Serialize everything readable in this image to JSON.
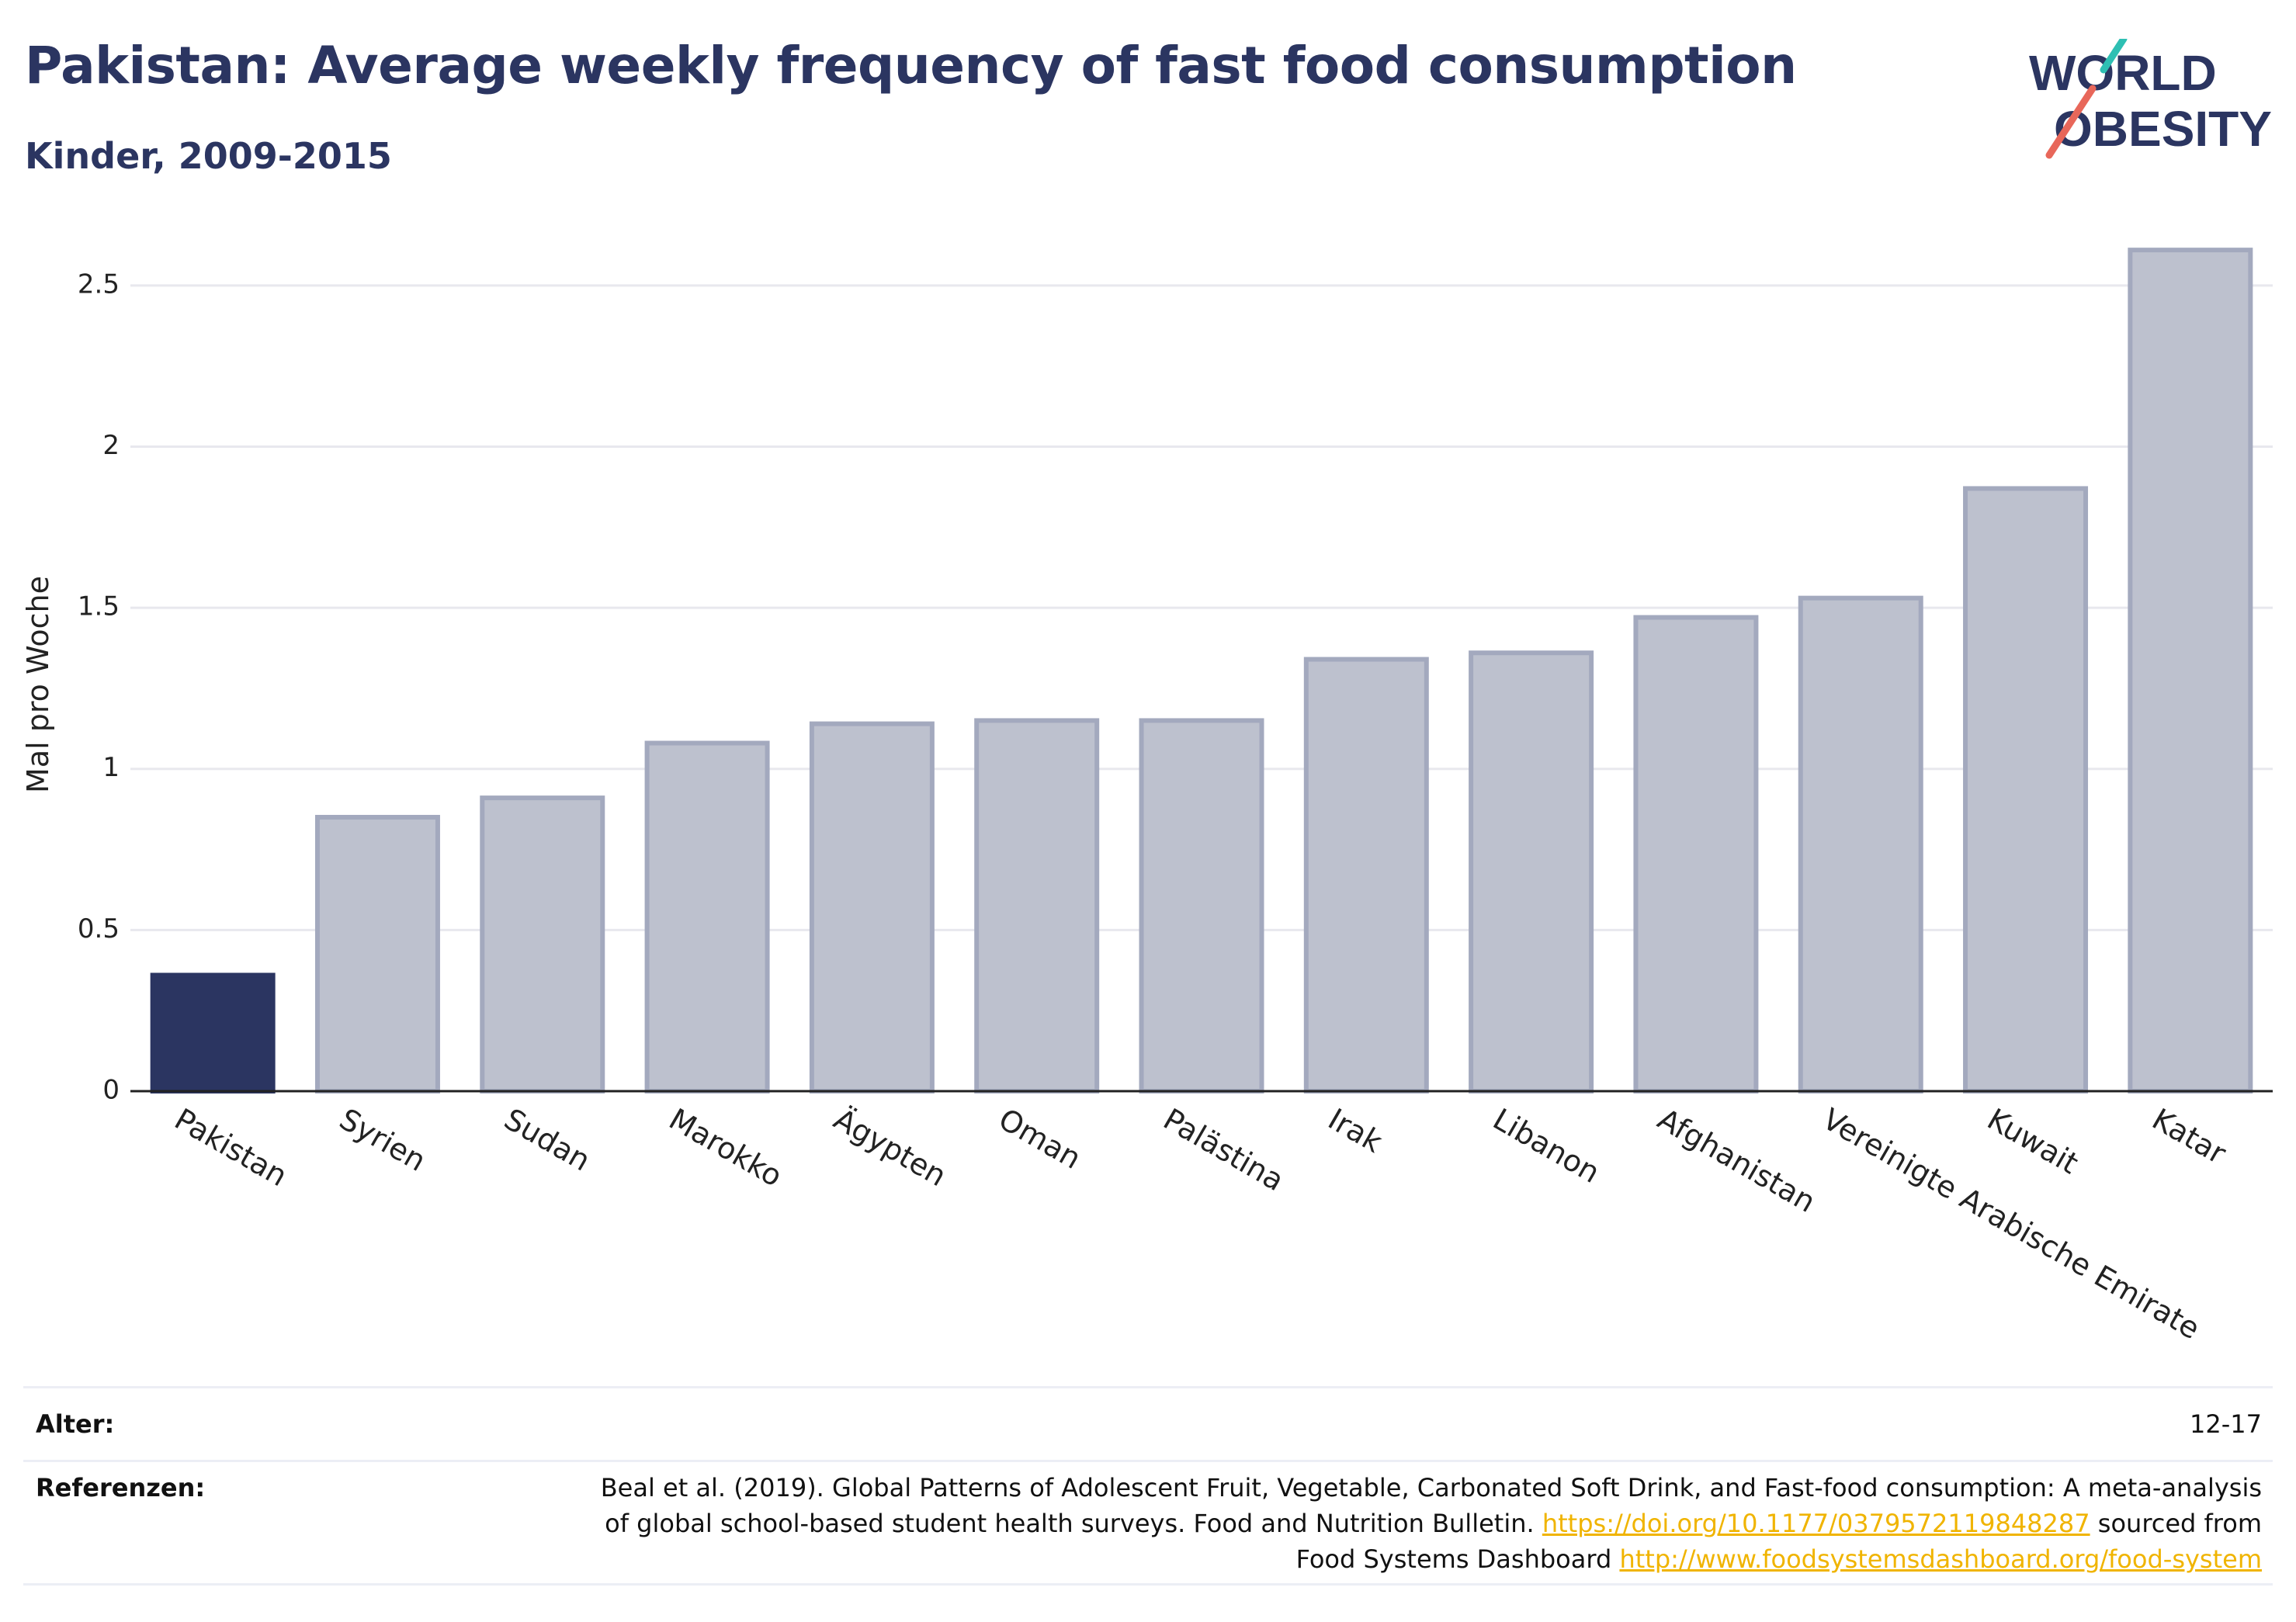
{
  "header": {
    "title": "Pakistan: Average weekly frequency of fast food consumption",
    "subtitle": "Kinder, 2009-2015",
    "logo_line1": "WORLD",
    "logo_line2": "OBESITY"
  },
  "chart_data": {
    "type": "bar",
    "title": "Pakistan: Average weekly frequency of fast food consumption",
    "subtitle": "Kinder, 2009-2015",
    "xlabel": "",
    "ylabel": "Mal pro Woche",
    "ylim": [
      0,
      2.62
    ],
    "yticks": [
      0,
      0.5,
      1,
      1.5,
      2,
      2.5
    ],
    "ytick_labels": [
      "0",
      "0.5",
      "1",
      "1.5",
      "2",
      "2.5"
    ],
    "grid": true,
    "categories": [
      "Pakistan",
      "Syrien",
      "Sudan",
      "Marokko",
      "Ägypten",
      "Oman",
      "Palästina",
      "Irak",
      "Libanon",
      "Afghanistan",
      "Vereinigte Arabische Emirate",
      "Kuwait",
      "Katar"
    ],
    "values": [
      0.36,
      0.85,
      0.91,
      1.08,
      1.14,
      1.15,
      1.15,
      1.34,
      1.36,
      1.47,
      1.53,
      1.87,
      2.61
    ],
    "highlight_category": "Pakistan",
    "colors": {
      "highlight": "#2b3561",
      "other_fill": "#bdc1ce",
      "other_stroke": "#a3a9be",
      "axis": "#222222",
      "grid": "#e8e8ee"
    }
  },
  "footer": {
    "age_label": "Alter:",
    "age_value": "12-17",
    "ref_label": "Referenzen:",
    "ref_line1": "Beal et al. (2019). Global Patterns of Adolescent Fruit, Vegetable, Carbonated Soft Drink, and Fast-food consumption: A meta-analysis",
    "ref_line2_text": "of global school-based student health surveys. Food and Nutrition Bulletin.",
    "ref_line2_link": "https://doi.org/10.1177/0379572119848287",
    "ref_line2_suffix": "sourced from",
    "ref_line3_text": "Food Systems Dashboard",
    "ref_line3_link": "http://www.foodsystemsdashboard.org/food-system"
  }
}
